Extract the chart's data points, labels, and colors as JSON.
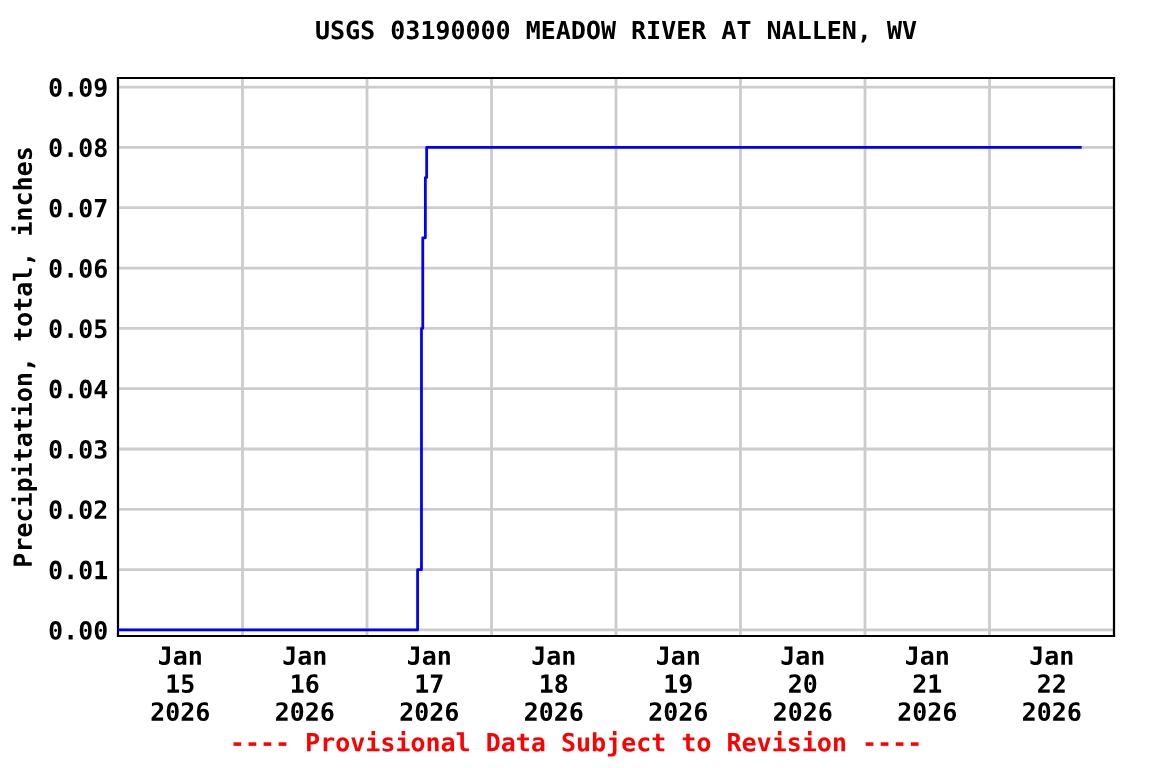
{
  "chart_data": {
    "type": "step",
    "title": "USGS 03190000 MEADOW RIVER AT NALLEN, WV",
    "ylabel": "Precipitation, total, inches",
    "annotations": [
      "---- Provisional Data Subject to Revision ----"
    ],
    "x": [
      "2026-01-15T00:00",
      "2026-01-17T09:45",
      "2026-01-17T10:30",
      "2026-01-17T10:45",
      "2026-01-17T11:15",
      "2026-01-17T11:30",
      "2026-01-22T17:30"
    ],
    "series": [
      {
        "color": "#0000ff",
        "values": [
          0,
          0.01,
          0.05,
          0.065,
          0.075,
          0.08,
          0.08
        ]
      }
    ],
    "xlim": [
      "2026-01-15T00:00",
      "2026-01-23T00:00"
    ],
    "xticks": [
      {
        "value": "2026-01-15T12:00",
        "label": "Jan\n15\n2026"
      },
      {
        "value": "2026-01-16T12:00",
        "label": "Jan\n16\n2026"
      },
      {
        "value": "2026-01-17T12:00",
        "label": "Jan\n17\n2026"
      },
      {
        "value": "2026-01-18T12:00",
        "label": "Jan\n18\n2026"
      },
      {
        "value": "2026-01-19T12:00",
        "label": "Jan\n19\n2026"
      },
      {
        "value": "2026-01-20T12:00",
        "label": "Jan\n20\n2026"
      },
      {
        "value": "2026-01-21T12:00",
        "label": "Jan\n21\n2026"
      },
      {
        "value": "2026-01-22T12:00",
        "label": "Jan\n22\n2026"
      },
      {
        "value": "2026-01-16T00:00",
        "label": null
      },
      {
        "value": "2026-01-17T00:00",
        "label": null
      },
      {
        "value": "2026-01-18T00:00",
        "label": null
      },
      {
        "value": "2026-01-19T00:00",
        "label": null
      },
      {
        "value": "2026-01-20T00:00",
        "label": null
      },
      {
        "value": "2026-01-21T00:00",
        "label": null
      },
      {
        "value": "2026-01-22T00:00",
        "label": null
      }
    ],
    "ylim": [
      -0.001,
      0.0915
    ],
    "yticks": [
      {
        "value": 0,
        "label": "0.00"
      },
      {
        "value": 0.01,
        "label": "0.01"
      },
      {
        "value": 0.02,
        "label": "0.02"
      },
      {
        "value": 0.03,
        "label": "0.03"
      },
      {
        "value": 0.04,
        "label": "0.04"
      },
      {
        "value": 0.05,
        "label": "0.05"
      },
      {
        "value": 0.06,
        "label": "0.06"
      },
      {
        "value": 0.07,
        "label": "0.07"
      },
      {
        "value": 0.08,
        "label": "0.08"
      },
      {
        "value": 0.09,
        "label": "0.09"
      }
    ],
    "grid": true,
    "legend": false
  }
}
